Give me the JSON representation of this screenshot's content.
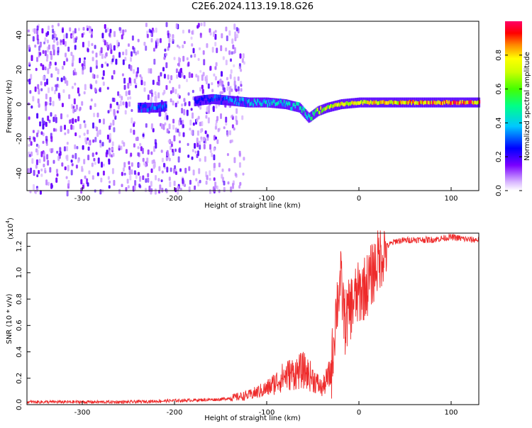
{
  "title": "C2E6.2024.113.19.18.G26",
  "colors": {
    "snr_line": "#ee2a2a",
    "frame": "#000000",
    "noise_purple": "#6a00ff",
    "colormap": [
      "#ffffff",
      "#c9a3ff",
      "#8a2be2",
      "#5a00ff",
      "#0000ff",
      "#00c8ff",
      "#00ff66",
      "#aaff00",
      "#ffff00",
      "#ff8800",
      "#ff0000",
      "#ff0066"
    ]
  },
  "chart_data": [
    {
      "type": "heatmap",
      "name": "spectrogram",
      "xlabel": "Height of straight line (km)",
      "ylabel": "Frequency (Hz)",
      "xlim": [
        -360,
        130
      ],
      "ylim": [
        -50,
        48
      ],
      "xticks": [
        -300,
        -200,
        -100,
        0,
        100
      ],
      "yticks": [
        -40,
        -20,
        0,
        20,
        40
      ],
      "tone_track": [
        {
          "x": -240,
          "y": -2,
          "amp": 0.3
        },
        {
          "x": -220,
          "y": -2,
          "amp": 0.35
        },
        {
          "x": -175,
          "y": 2,
          "amp": 0.25
        },
        {
          "x": -160,
          "y": 3,
          "amp": 0.3
        },
        {
          "x": -140,
          "y": 2,
          "amp": 0.35
        },
        {
          "x": -120,
          "y": 1,
          "amp": 0.4
        },
        {
          "x": -100,
          "y": 1,
          "amp": 0.45
        },
        {
          "x": -80,
          "y": 0,
          "amp": 0.45
        },
        {
          "x": -65,
          "y": -2,
          "amp": 0.5
        },
        {
          "x": -55,
          "y": -8,
          "amp": 0.45
        },
        {
          "x": -45,
          "y": -4,
          "amp": 0.7
        },
        {
          "x": -35,
          "y": -2,
          "amp": 0.75
        },
        {
          "x": -20,
          "y": 0,
          "amp": 0.8
        },
        {
          "x": 0,
          "y": 1,
          "amp": 0.75
        },
        {
          "x": 25,
          "y": 1,
          "amp": 0.8
        },
        {
          "x": 50,
          "y": 1,
          "amp": 0.85
        },
        {
          "x": 75,
          "y": 1,
          "amp": 0.9
        },
        {
          "x": 100,
          "y": 1,
          "amp": 0.95
        },
        {
          "x": 130,
          "y": 1,
          "amp": 0.9
        }
      ],
      "noise_region_xmax": -140
    },
    {
      "type": "colorbar",
      "name": "colorbar",
      "label": "Normalized spectral amplitude",
      "ylim": [
        0,
        1
      ],
      "ticks": [
        0.0,
        0.2,
        0.4,
        0.6,
        0.8
      ],
      "tick_labels": [
        "0.0",
        "0.2",
        "0.4",
        "0.6",
        "0.8"
      ]
    },
    {
      "type": "line",
      "name": "snr",
      "xlabel": "Height of straight line (km)",
      "ylabel": "SNR (10 * v/v)",
      "multiplier": "(x10",
      "multiplier_exp": "4",
      "multiplier_close": ")",
      "xlim": [
        -360,
        130
      ],
      "ylim": [
        0,
        1.3
      ],
      "xticks": [
        -300,
        -200,
        -100,
        0,
        100
      ],
      "yticks": [
        0.0,
        0.2,
        0.4,
        0.6,
        0.8,
        1.0,
        1.2
      ],
      "ytick_labels": [
        "0.0",
        "0.2",
        "0.4",
        "0.6",
        "0.8",
        "1.0",
        "1.2"
      ],
      "series": [
        {
          "name": "SNR",
          "x": [
            -360,
            -300,
            -250,
            -200,
            -150,
            -120,
            -100,
            -80,
            -60,
            -50,
            -40,
            -30,
            -25,
            -20,
            -15,
            -10,
            -5,
            0,
            10,
            20,
            30,
            40,
            60,
            80,
            100,
            120,
            130
          ],
          "y": [
            0.02,
            0.02,
            0.02,
            0.03,
            0.04,
            0.07,
            0.12,
            0.22,
            0.26,
            0.2,
            0.12,
            0.25,
            0.7,
            0.95,
            0.62,
            0.72,
            0.8,
            0.84,
            0.92,
            1.08,
            1.2,
            1.24,
            1.25,
            1.25,
            1.27,
            1.25,
            1.25
          ]
        }
      ]
    }
  ]
}
